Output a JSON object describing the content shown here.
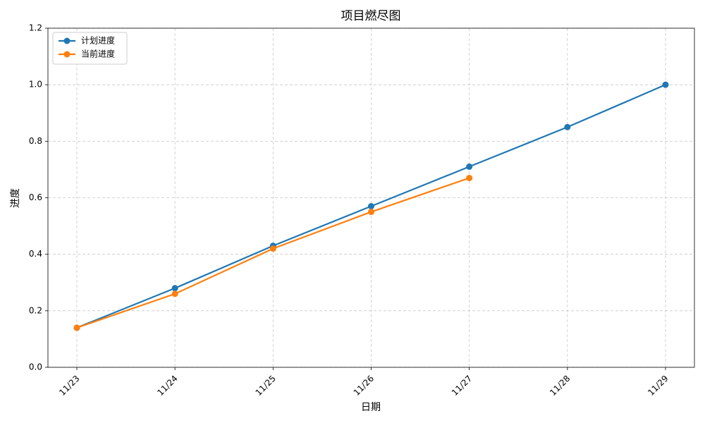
{
  "chart_data": {
    "type": "line",
    "title": "项目燃尽图",
    "x_label": "日期",
    "y_label": "进度",
    "categories": [
      "11/23",
      "11/24",
      "11/25",
      "11/26",
      "11/27",
      "11/28",
      "11/29"
    ],
    "series": [
      {
        "name": "计划进度",
        "color": "#1f77b4",
        "values": [
          0.14,
          0.28,
          0.43,
          0.57,
          0.71,
          0.85,
          1.0
        ]
      },
      {
        "name": "当前进度",
        "color": "#ff7f0e",
        "values": [
          0.14,
          0.26,
          0.42,
          0.55,
          0.67,
          null,
          null
        ]
      }
    ],
    "ylim": [
      0,
      1.2
    ],
    "yticks": [
      {
        "value": 0,
        "label": "0.0"
      },
      0.2,
      0.4,
      0.6,
      0.8,
      {
        "value": 1,
        "label": "1.0"
      },
      1.2
    ],
    "grid": true,
    "legend": "upper-left"
  }
}
